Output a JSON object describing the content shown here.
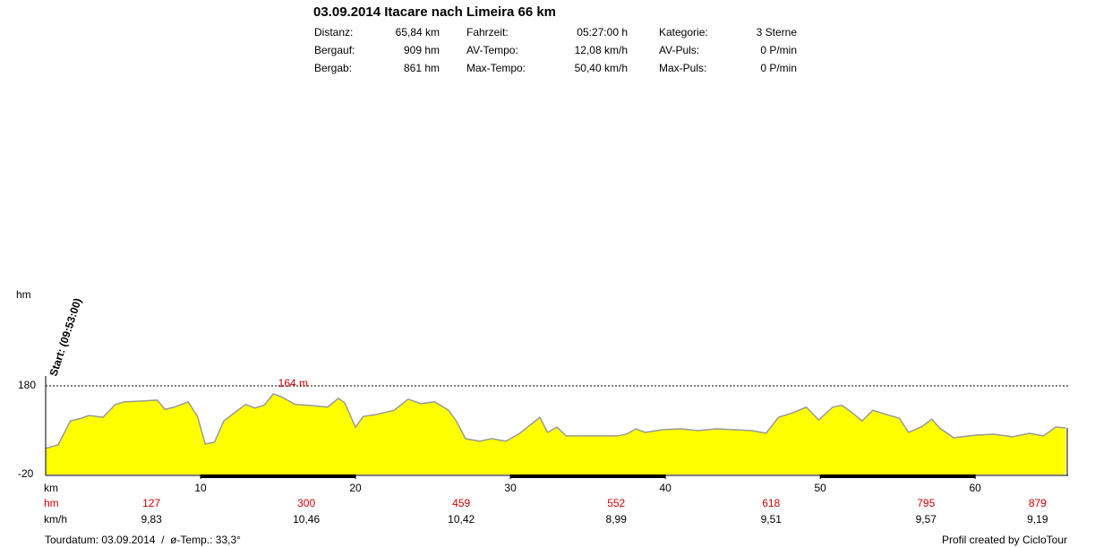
{
  "chart_data": {
    "type": "area",
    "title": "03.09.2014 Itacare nach Limeira 66 km",
    "stats": [
      [
        [
          "Distanz:",
          "65,84 km"
        ],
        [
          "Fahrzeit:",
          "05:27:00 h"
        ],
        [
          "Kategorie:",
          "3 Sterne"
        ]
      ],
      [
        [
          "Bergauf:",
          "909 hm"
        ],
        [
          "AV-Tempo:",
          "12,08 km/h"
        ],
        [
          "AV-Puls:",
          "0 P/min"
        ]
      ],
      [
        [
          "Bergab:",
          "861 hm"
        ],
        [
          "Max-Tempo:",
          "50,40 km/h"
        ],
        [
          "Max-Puls:",
          "0 P/min"
        ]
      ]
    ],
    "y_label": "hm",
    "x_label": "km",
    "start_label": "Start: (09:53:00)",
    "max_label": "164 m",
    "color": "#ffff00",
    "line_color": "#999999",
    "grid": true,
    "xlim": [
      0,
      66
    ],
    "xticks": [
      10,
      20,
      30,
      40,
      50,
      60
    ],
    "ylim": [
      -20,
      180
    ],
    "yticks": [
      -20,
      180
    ],
    "x": [
      0,
      0.8,
      1.6,
      2.3,
      2.8,
      3.7,
      4.5,
      5.1,
      6.3,
      7.2,
      7.7,
      8.3,
      9.2,
      9.8,
      10.3,
      10.9,
      11.5,
      12.4,
      12.9,
      13.5,
      14.1,
      14.7,
      15.3,
      16.1,
      17.0,
      18.2,
      18.9,
      19.3,
      20.0,
      20.5,
      21.3,
      22.5,
      23.4,
      24.2,
      25.1,
      26.0,
      26.5,
      27.1,
      28.0,
      28.8,
      29.7,
      30.6,
      31.4,
      31.9,
      32.4,
      33.0,
      33.6,
      35.2,
      36.9,
      37.5,
      38.1,
      38.7,
      39.8,
      41.0,
      42.1,
      43.3,
      44.5,
      45.6,
      46.5,
      47.3,
      48.2,
      49.1,
      49.9,
      50.8,
      51.4,
      52.0,
      52.7,
      53.4,
      54.3,
      55.1,
      55.7,
      56.6,
      57.2,
      57.7,
      58.6,
      60.1,
      61.2,
      62.4,
      63.5,
      64.4,
      65.2,
      65.84
    ],
    "values": [
      39,
      47,
      101,
      107,
      113,
      109,
      138,
      144,
      146,
      148,
      127,
      132,
      144,
      111,
      49,
      53,
      101,
      125,
      138,
      130,
      136,
      162,
      154,
      138,
      136,
      132,
      152,
      142,
      87,
      111,
      115,
      125,
      150,
      140,
      144,
      125,
      101,
      61,
      55,
      61,
      55,
      73,
      95,
      109,
      75,
      87,
      67,
      67,
      67,
      71,
      83,
      75,
      81,
      83,
      79,
      83,
      81,
      79,
      73,
      109,
      119,
      132,
      103,
      132,
      136,
      121,
      101,
      125,
      115,
      107,
      75,
      89,
      105,
      85,
      63,
      69,
      71,
      65,
      73,
      67,
      87,
      85
    ],
    "row_hm_label": "hm",
    "row_hm": [
      127,
      300,
      459,
      552,
      618,
      795,
      879
    ],
    "row_kmh_label": "km/h",
    "row_kmh": [
      "9,83",
      "10,46",
      "10,42",
      "8,99",
      "9,51",
      "9,57",
      "9,19"
    ],
    "footer_left": "Tourdatum: 03.09.2014  /  ø-Temp.: 33,3°",
    "footer_right": "Profil created by CicloTour"
  }
}
